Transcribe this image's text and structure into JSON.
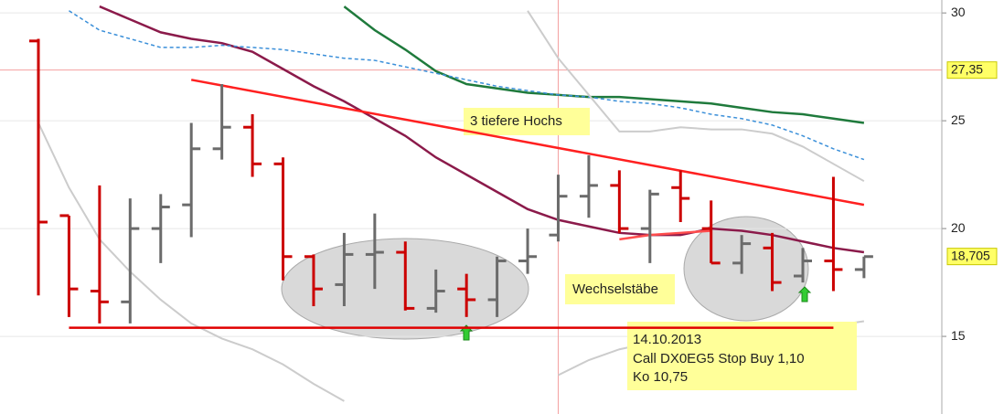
{
  "chart_data": {
    "type": "ohlc",
    "categories": [
      null,
      null,
      null,
      null,
      null,
      null,
      null,
      null,
      null,
      null,
      null,
      null,
      null,
      null,
      null,
      null,
      null,
      null,
      null,
      null,
      null,
      null,
      null,
      null,
      null,
      null,
      null,
      null
    ],
    "open": [
      28.7,
      20.6,
      17.1,
      16.6,
      20.0,
      21.1,
      23.7,
      24.7,
      23.0,
      18.7,
      17.4,
      18.8,
      18.9,
      16.3,
      17.2,
      16.7,
      18.5,
      19.7,
      21.5,
      22.0,
      20.0,
      21.9,
      20.0,
      18.4,
      19.1,
      17.8,
      18.5,
      18.1
    ],
    "high": [
      28.8,
      20.6,
      22.0,
      21.4,
      21.6,
      24.9,
      26.7,
      25.3,
      23.3,
      18.8,
      19.8,
      20.7,
      19.4,
      18.1,
      17.9,
      18.7,
      20.0,
      22.5,
      23.4,
      22.7,
      21.8,
      22.7,
      21.3,
      19.7,
      19.8,
      19.1,
      22.4,
      18.7
    ],
    "low": [
      16.9,
      15.9,
      15.6,
      15.6,
      18.4,
      19.6,
      23.2,
      22.4,
      17.6,
      16.4,
      16.4,
      17.2,
      16.2,
      16.1,
      15.9,
      15.9,
      17.9,
      19.4,
      20.5,
      19.8,
      18.4,
      20.3,
      18.4,
      17.9,
      17.1,
      17.5,
      17.1,
      17.7
    ],
    "close": [
      20.3,
      17.2,
      16.6,
      20.0,
      21.0,
      23.7,
      24.7,
      23.0,
      18.7,
      17.2,
      18.8,
      18.9,
      16.3,
      17.1,
      16.7,
      18.5,
      18.7,
      21.5,
      22.0,
      20.0,
      21.6,
      21.4,
      18.4,
      19.3,
      17.5,
      18.5,
      18.1,
      18.7
    ],
    "up_color": "#6b6b6b",
    "down_color": "#cc0000",
    "lines": [
      {
        "color": "#8b1a4a",
        "values": [
          null,
          null,
          30.3,
          29.7,
          29.1,
          28.8,
          28.6,
          28.2,
          27.4,
          26.6,
          25.9,
          25.1,
          24.3,
          23.3,
          22.5,
          21.7,
          20.9,
          20.4,
          20.1,
          19.8,
          19.7,
          19.7,
          20.0,
          19.9,
          19.7,
          19.4,
          19.1,
          18.9
        ]
      },
      {
        "color": "#1f7a3c",
        "values": [
          null,
          null,
          null,
          null,
          null,
          null,
          null,
          null,
          null,
          null,
          30.3,
          29.2,
          28.3,
          27.3,
          26.7,
          26.5,
          26.3,
          26.2,
          26.1,
          26.1,
          26.0,
          25.9,
          25.8,
          25.6,
          25.4,
          25.3,
          25.1,
          24.9
        ]
      },
      {
        "color": "#3a8fd9",
        "dashed": true,
        "values": [
          null,
          30.1,
          29.2,
          28.8,
          28.4,
          28.4,
          28.5,
          28.4,
          28.3,
          28.1,
          27.9,
          27.8,
          27.5,
          27.2,
          26.9,
          26.6,
          26.4,
          26.2,
          26.1,
          25.9,
          25.8,
          25.6,
          25.3,
          25.1,
          24.8,
          24.3,
          23.7,
          23.2
        ]
      },
      {
        "color": "#cccccc",
        "values": [
          24.9,
          21.9,
          19.5,
          18.0,
          16.7,
          15.6,
          14.9,
          14.4,
          13.7,
          12.8,
          12.0,
          null,
          null,
          null,
          null,
          null,
          null,
          13.2,
          13.9,
          14.4,
          14.7,
          14.9,
          15.0,
          15.1,
          15.2,
          15.3,
          15.5,
          15.7
        ]
      },
      {
        "color": "#cccccc",
        "values": [
          null,
          null,
          null,
          null,
          null,
          null,
          null,
          null,
          null,
          null,
          null,
          null,
          null,
          null,
          null,
          null,
          30.1,
          27.9,
          26.2,
          24.5,
          24.5,
          24.7,
          24.6,
          24.6,
          24.4,
          23.8,
          23.0,
          22.2
        ]
      },
      {
        "color": "#ff4d4d",
        "values": [
          null,
          null,
          null,
          null,
          null,
          null,
          null,
          null,
          null,
          null,
          null,
          null,
          null,
          null,
          null,
          null,
          null,
          null,
          null,
          19.5,
          19.7,
          19.8,
          19.9,
          null,
          null,
          null,
          null,
          null
        ]
      }
    ],
    "support": {
      "value": 15.4,
      "from": 1,
      "to": 26,
      "color": "#e00000"
    },
    "trendline": {
      "from": [
        5,
        26.9
      ],
      "to": [
        27,
        21.1
      ],
      "color": "#ff2020"
    },
    "crosshair_x": 17,
    "price_labels": [
      {
        "value": 27.35,
        "label": "27,35"
      },
      {
        "value": 18.705,
        "label": "18,705"
      }
    ],
    "annotations": [
      "3 tiefere Hochs",
      "Wechselstäbe",
      "14.10.2013",
      "Call DX0EG5 Stop Buy 1,10",
      "Ko 10,75"
    ],
    "ylim": [
      11.4,
      30.6
    ],
    "yticks": [
      15,
      20,
      25,
      30
    ],
    "grid": true
  }
}
